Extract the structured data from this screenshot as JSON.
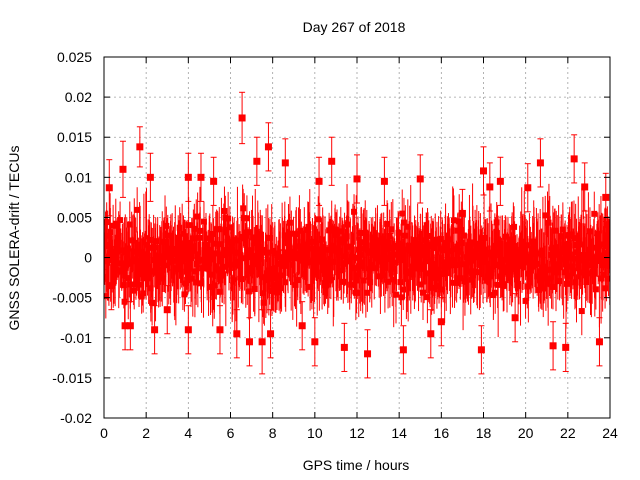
{
  "chart_data": {
    "type": "scatter",
    "title": "Day 267 of 2018",
    "xlabel": "GPS time / hours",
    "ylabel": "GNSS SOLERA-drift / TECUs",
    "xlim": [
      0,
      24
    ],
    "ylim": [
      -0.02,
      0.025
    ],
    "x_ticks": [
      0,
      2,
      4,
      6,
      8,
      10,
      12,
      14,
      16,
      18,
      20,
      22,
      24
    ],
    "x_tick_labels": [
      "0",
      "2",
      "4",
      "6",
      "8",
      "10",
      "12",
      "14",
      "16",
      "18",
      "20",
      "22",
      "24"
    ],
    "y_ticks": [
      -0.02,
      -0.015,
      -0.01,
      -0.005,
      0,
      0.005,
      0.01,
      0.015,
      0.02,
      0.025
    ],
    "y_tick_labels": [
      "-0.02",
      "-0.015",
      "-0.01",
      "-0.005",
      "0",
      "0.005",
      "0.01",
      "0.015",
      "0.02",
      "0.025"
    ],
    "grid": true,
    "series_color": "#ff0000",
    "marker": "square",
    "error_bars": true,
    "typical_error": 0.003,
    "series": [
      {
        "name": "SOLERA drift",
        "points": [
          {
            "x": 0.05,
            "y": 0.0015,
            "err": 0.003
          },
          {
            "x": 0.25,
            "y": 0.0087,
            "err": 0.0035
          },
          {
            "x": 0.35,
            "y": -0.0035,
            "err": 0.003
          },
          {
            "x": 0.9,
            "y": 0.011,
            "err": 0.0035
          },
          {
            "x": 1.0,
            "y": -0.0085,
            "err": 0.003
          },
          {
            "x": 1.25,
            "y": -0.0085,
            "err": 0.003
          },
          {
            "x": 1.7,
            "y": 0.0138,
            "err": 0.0025
          },
          {
            "x": 2.2,
            "y": 0.01,
            "err": 0.003
          },
          {
            "x": 2.4,
            "y": -0.009,
            "err": 0.003
          },
          {
            "x": 3.0,
            "y": -0.0065,
            "err": 0.003
          },
          {
            "x": 4.0,
            "y": 0.01,
            "err": 0.003
          },
          {
            "x": 4.0,
            "y": -0.009,
            "err": 0.003
          },
          {
            "x": 4.6,
            "y": 0.01,
            "err": 0.003
          },
          {
            "x": 5.2,
            "y": 0.0095,
            "err": 0.003
          },
          {
            "x": 5.5,
            "y": -0.009,
            "err": 0.003
          },
          {
            "x": 6.3,
            "y": -0.0095,
            "err": 0.003
          },
          {
            "x": 6.55,
            "y": 0.0174,
            "err": 0.0032
          },
          {
            "x": 6.9,
            "y": -0.0105,
            "err": 0.003
          },
          {
            "x": 7.25,
            "y": 0.012,
            "err": 0.003
          },
          {
            "x": 7.5,
            "y": -0.0105,
            "err": 0.004
          },
          {
            "x": 7.8,
            "y": 0.0138,
            "err": 0.003
          },
          {
            "x": 7.9,
            "y": -0.0095,
            "err": 0.003
          },
          {
            "x": 8.6,
            "y": 0.0118,
            "err": 0.003
          },
          {
            "x": 9.4,
            "y": -0.0085,
            "err": 0.003
          },
          {
            "x": 10.0,
            "y": -0.0105,
            "err": 0.003
          },
          {
            "x": 10.2,
            "y": 0.0095,
            "err": 0.003
          },
          {
            "x": 10.8,
            "y": 0.012,
            "err": 0.003
          },
          {
            "x": 11.4,
            "y": -0.0112,
            "err": 0.003
          },
          {
            "x": 12.0,
            "y": 0.0098,
            "err": 0.003
          },
          {
            "x": 12.5,
            "y": -0.012,
            "err": 0.003
          },
          {
            "x": 13.3,
            "y": 0.0095,
            "err": 0.003
          },
          {
            "x": 14.2,
            "y": -0.0115,
            "err": 0.003
          },
          {
            "x": 15.0,
            "y": 0.0098,
            "err": 0.003
          },
          {
            "x": 15.5,
            "y": -0.0095,
            "err": 0.003
          },
          {
            "x": 16.0,
            "y": -0.008,
            "err": 0.003
          },
          {
            "x": 17.0,
            "y": 0.0055,
            "err": 0.003
          },
          {
            "x": 17.9,
            "y": -0.0115,
            "err": 0.003
          },
          {
            "x": 18.0,
            "y": 0.0108,
            "err": 0.003
          },
          {
            "x": 18.3,
            "y": 0.0088,
            "err": 0.003
          },
          {
            "x": 18.8,
            "y": 0.0095,
            "err": 0.003
          },
          {
            "x": 19.5,
            "y": -0.0075,
            "err": 0.003
          },
          {
            "x": 20.1,
            "y": 0.0087,
            "err": 0.003
          },
          {
            "x": 20.7,
            "y": 0.0118,
            "err": 0.003
          },
          {
            "x": 21.3,
            "y": -0.011,
            "err": 0.003
          },
          {
            "x": 21.9,
            "y": -0.0112,
            "err": 0.003
          },
          {
            "x": 22.3,
            "y": 0.0123,
            "err": 0.003
          },
          {
            "x": 22.8,
            "y": 0.0088,
            "err": 0.003
          },
          {
            "x": 23.5,
            "y": -0.0105,
            "err": 0.003
          },
          {
            "x": 23.8,
            "y": 0.0075,
            "err": 0.003
          }
        ]
      }
    ]
  }
}
